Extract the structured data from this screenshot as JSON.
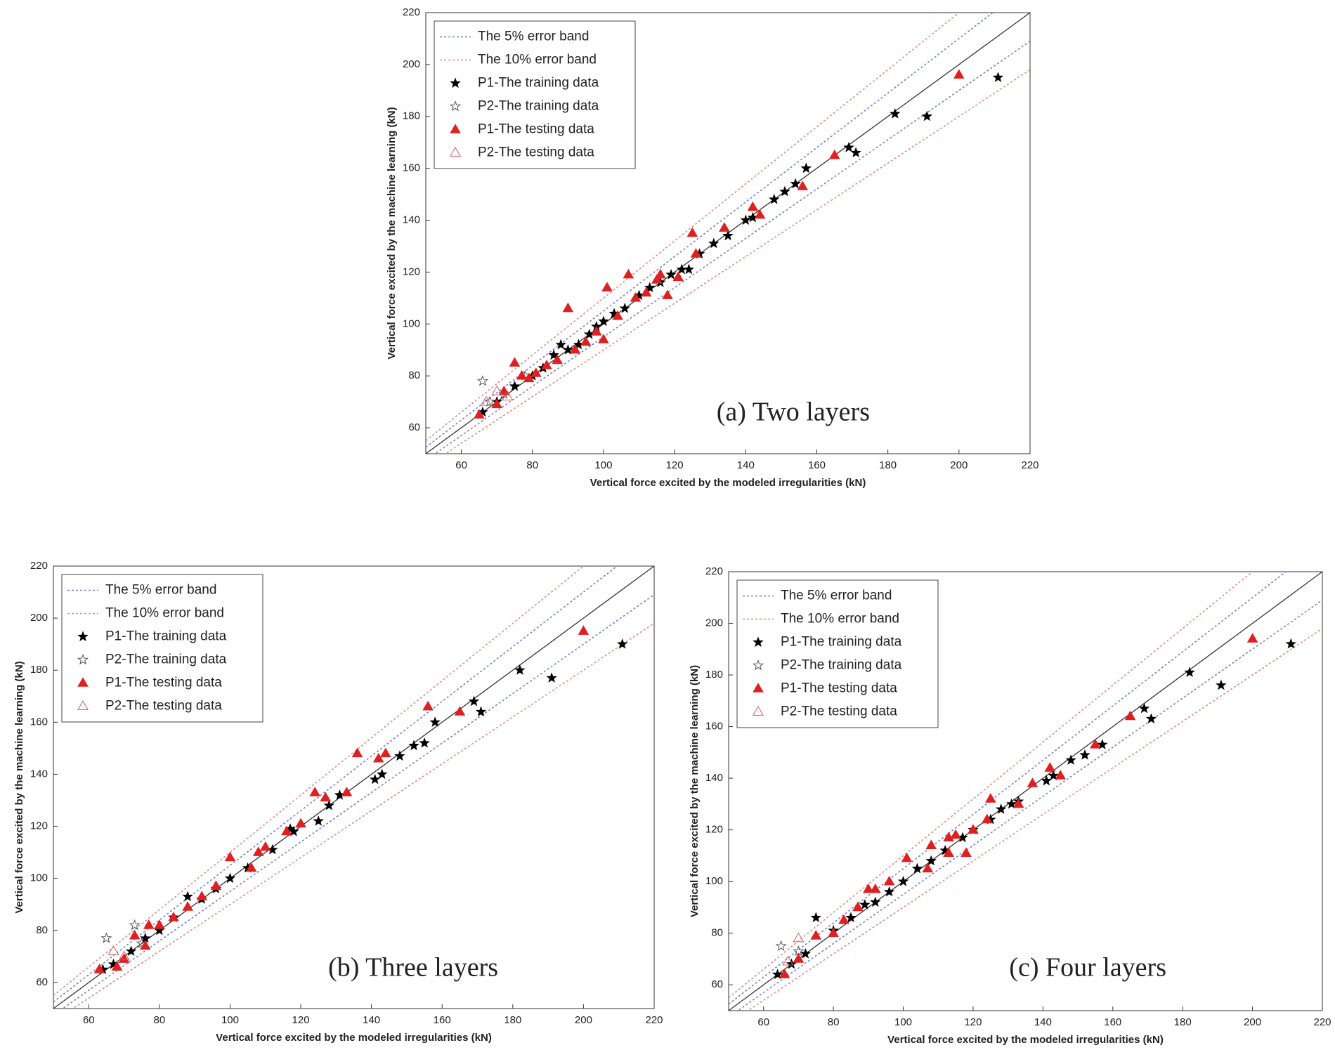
{
  "chart_data": [
    {
      "type": "scatter",
      "annotation": "(a) Two layers",
      "xlabel": "Vertical force excited by the modeled irregularities (kN)",
      "ylabel": "Vertical force excited by the machine learning (kN)",
      "xlim": [
        50,
        220
      ],
      "ylim": [
        50,
        220
      ],
      "xticks": [
        60,
        80,
        100,
        120,
        140,
        160,
        180,
        200,
        220
      ],
      "yticks": [
        60,
        80,
        100,
        120,
        140,
        160,
        180,
        200,
        220
      ],
      "legend": "upper left",
      "reference_line": {
        "color": "#333333",
        "x": [
          50,
          220
        ],
        "values": [
          50,
          220
        ]
      },
      "bands": [
        {
          "name": "The 5% error band",
          "color": "#7b7bd6",
          "lines": [
            {
              "x": [
                50,
                220
              ],
              "values": [
                52.5,
                231
              ]
            },
            {
              "x": [
                50,
                220
              ],
              "values": [
                47.5,
                209
              ]
            }
          ]
        },
        {
          "name": "The 10% error band",
          "color": "#e08a8a",
          "lines": [
            {
              "x": [
                50,
                220
              ],
              "values": [
                55,
                242
              ]
            },
            {
              "x": [
                50,
                220
              ],
              "values": [
                45,
                198
              ]
            }
          ]
        }
      ],
      "series": [
        {
          "name": "P1-The training data",
          "marker": "star",
          "filled": true,
          "color": "#000000",
          "x": [
            66,
            70,
            75,
            80,
            83,
            86,
            88,
            90,
            93,
            96,
            98,
            100,
            103,
            106,
            110,
            113,
            116,
            119,
            122,
            124,
            127,
            131,
            135,
            140,
            142,
            148,
            151,
            154,
            157,
            169,
            171,
            182,
            191,
            211
          ],
          "values": [
            66,
            70,
            76,
            80,
            83,
            88,
            92,
            90,
            92,
            96,
            99,
            101,
            104,
            106,
            111,
            114,
            116,
            119,
            121,
            121,
            127,
            131,
            134,
            140,
            141,
            148,
            151,
            154,
            160,
            168,
            166,
            181,
            180,
            195
          ]
        },
        {
          "name": "P2-The training data",
          "marker": "star",
          "filled": false,
          "color": "#555555",
          "x": [
            66,
            68,
            72,
            78
          ],
          "values": [
            78,
            70,
            73,
            80
          ]
        },
        {
          "name": "P1-The testing data",
          "marker": "triangle",
          "filled": true,
          "color": "#e02020",
          "x": [
            65,
            70,
            72,
            75,
            77,
            79,
            81,
            84,
            87,
            90,
            92,
            95,
            98,
            100,
            101,
            104,
            107,
            109,
            112,
            115,
            116,
            118,
            121,
            125,
            126,
            134,
            142,
            144,
            156,
            165,
            200
          ],
          "values": [
            65,
            69,
            74,
            85,
            80,
            79,
            81,
            84,
            86,
            106,
            90,
            93,
            97,
            94,
            114,
            103,
            119,
            110,
            112,
            117,
            119,
            111,
            118,
            135,
            127,
            137,
            145,
            142,
            153,
            165,
            196
          ]
        },
        {
          "name": "P2-The testing data",
          "marker": "triangle",
          "filled": false,
          "color": "#d06060",
          "x": [
            67,
            70,
            73
          ],
          "values": [
            70,
            74,
            72
          ]
        }
      ]
    },
    {
      "type": "scatter",
      "annotation": "(b) Three layers",
      "xlabel": "Vertical force excited by the modeled irregularities (kN)",
      "ylabel": "Vertical force excited by the machine learning (kN)",
      "xlim": [
        50,
        220
      ],
      "ylim": [
        50,
        220
      ],
      "xticks": [
        60,
        80,
        100,
        120,
        140,
        160,
        180,
        200,
        220
      ],
      "yticks": [
        60,
        80,
        100,
        120,
        140,
        160,
        180,
        200,
        220
      ],
      "legend": "upper left",
      "reference_line": {
        "color": "#333333",
        "x": [
          50,
          220
        ],
        "values": [
          50,
          220
        ]
      },
      "bands": [
        {
          "name": "The 5% error band",
          "color": "#7b7bd6",
          "lines": [
            {
              "x": [
                50,
                220
              ],
              "values": [
                52.5,
                231
              ]
            },
            {
              "x": [
                50,
                220
              ],
              "values": [
                47.5,
                209
              ]
            }
          ]
        },
        {
          "name": "The 10% error band",
          "color": "#e08a8a",
          "lines": [
            {
              "x": [
                50,
                220
              ],
              "values": [
                55,
                242
              ]
            },
            {
              "x": [
                50,
                220
              ],
              "values": [
                45,
                198
              ]
            }
          ]
        }
      ],
      "series": [
        {
          "name": "P1-The training data",
          "marker": "star",
          "filled": true,
          "color": "#000000",
          "x": [
            64,
            67,
            72,
            76,
            80,
            84,
            88,
            92,
            96,
            100,
            105,
            112,
            117,
            118,
            125,
            128,
            131,
            141,
            143,
            148,
            152,
            155,
            158,
            169,
            171,
            182,
            191,
            211
          ],
          "values": [
            65,
            67,
            72,
            77,
            80,
            85,
            93,
            92,
            96,
            100,
            104,
            111,
            119,
            118,
            122,
            128,
            132,
            138,
            140,
            147,
            151,
            152,
            160,
            168,
            164,
            180,
            177,
            190
          ]
        },
        {
          "name": "P2-The training data",
          "marker": "star",
          "filled": false,
          "color": "#555555",
          "x": [
            65,
            73,
            75
          ],
          "values": [
            77,
            82,
            75
          ]
        },
        {
          "name": "P1-The testing data",
          "marker": "triangle",
          "filled": true,
          "color": "#e02020",
          "x": [
            63,
            68,
            70,
            73,
            76,
            77,
            80,
            84,
            88,
            92,
            96,
            100,
            106,
            108,
            110,
            116,
            120,
            124,
            127,
            133,
            136,
            142,
            144,
            156,
            165,
            200
          ],
          "values": [
            65,
            66,
            69,
            78,
            74,
            82,
            82,
            85,
            89,
            93,
            97,
            108,
            104,
            110,
            112,
            118,
            121,
            133,
            131,
            133,
            148,
            146,
            148,
            166,
            164,
            195
          ]
        },
        {
          "name": "P2-The testing data",
          "marker": "triangle",
          "filled": false,
          "color": "#d06060",
          "x": [
            67,
            70
          ],
          "values": [
            72,
            70
          ]
        }
      ]
    },
    {
      "type": "scatter",
      "annotation": "(c) Four layers",
      "xlabel": "Vertical force excited by the modeled irregularities (kN)",
      "ylabel": "Vertical force excited by the machine learning (kN)",
      "xlim": [
        50,
        220
      ],
      "ylim": [
        50,
        220
      ],
      "xticks": [
        60,
        80,
        100,
        120,
        140,
        160,
        180,
        200,
        220
      ],
      "yticks": [
        60,
        80,
        100,
        120,
        140,
        160,
        180,
        200,
        220
      ],
      "legend": "upper left",
      "reference_line": {
        "color": "#333333",
        "x": [
          50,
          220
        ],
        "values": [
          50,
          220
        ]
      },
      "bands": [
        {
          "name": "The 5% error band",
          "color": "#7b7bd6",
          "lines": [
            {
              "x": [
                50,
                220
              ],
              "values": [
                52.5,
                231
              ]
            },
            {
              "x": [
                50,
                220
              ],
              "values": [
                47.5,
                209
              ]
            }
          ]
        },
        {
          "name": "The 10% error band",
          "color": "#e08a8a",
          "lines": [
            {
              "x": [
                50,
                220
              ],
              "values": [
                55,
                242
              ]
            },
            {
              "x": [
                50,
                220
              ],
              "values": [
                45,
                198
              ]
            }
          ]
        }
      ],
      "series": [
        {
          "name": "P1-The training data",
          "marker": "star",
          "filled": true,
          "color": "#000000",
          "x": [
            64,
            68,
            72,
            75,
            80,
            85,
            89,
            92,
            96,
            100,
            104,
            108,
            112,
            117,
            120,
            125,
            128,
            131,
            133,
            141,
            143,
            148,
            152,
            157,
            169,
            171,
            182,
            191,
            211
          ],
          "values": [
            64,
            68,
            72,
            86,
            81,
            86,
            91,
            92,
            96,
            100,
            105,
            108,
            112,
            117,
            120,
            124,
            128,
            130,
            131,
            139,
            141,
            147,
            149,
            153,
            167,
            163,
            181,
            176,
            192
          ]
        },
        {
          "name": "P2-The training data",
          "marker": "star",
          "filled": false,
          "color": "#555555",
          "x": [
            65,
            70
          ],
          "values": [
            75,
            73
          ]
        },
        {
          "name": "P1-The testing data",
          "marker": "triangle",
          "filled": true,
          "color": "#e02020",
          "x": [
            66,
            70,
            75,
            80,
            83,
            87,
            90,
            92,
            96,
            101,
            107,
            108,
            113,
            113,
            115,
            118,
            120,
            124,
            125,
            133,
            137,
            142,
            145,
            155,
            165,
            200
          ],
          "values": [
            64,
            70,
            79,
            80,
            85,
            90,
            97,
            97,
            100,
            109,
            105,
            114,
            117,
            111,
            118,
            111,
            120,
            124,
            132,
            130,
            138,
            144,
            141,
            153,
            164,
            194
          ]
        },
        {
          "name": "P2-The testing data",
          "marker": "triangle",
          "filled": false,
          "color": "#d06060",
          "x": [
            70,
            67
          ],
          "values": [
            78,
            69
          ]
        }
      ]
    }
  ]
}
